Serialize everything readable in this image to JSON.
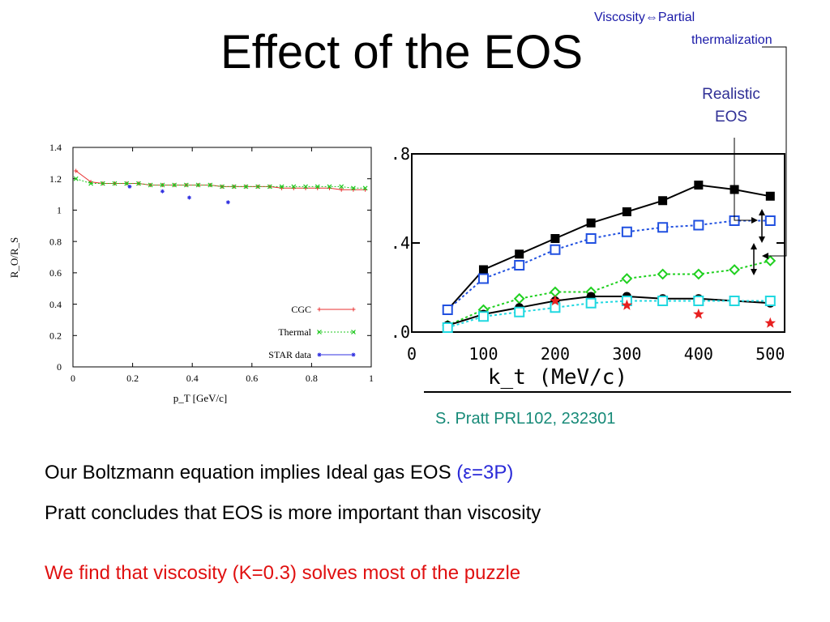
{
  "title": "Effect of the EOS",
  "annotations": {
    "viscosity_line1": "Viscosity⇔Partial",
    "viscosity_line2": "thermalization",
    "eos_line1": "Realistic",
    "eos_line2": "EOS"
  },
  "reference": "S. Pratt PRL102, 232301",
  "text_lines": {
    "line1_prefix": "Our Boltzmann equation implies Ideal gas EOS ",
    "line1_paren": "(ε=3P)",
    "line2": "Pratt concludes that EOS is more important than viscosity",
    "line3": "We find that viscosity (K=0.3) solves most of the puzzle"
  },
  "colors": {
    "title": "#000000",
    "annotation": "#1a1aa8",
    "reference": "#178a78",
    "highlight": "#e01010",
    "epsilon": "#2a2ad8"
  },
  "chart_data": [
    {
      "type": "line",
      "xlabel": "p_T [GeV/c]",
      "ylabel": "R_O/R_S",
      "xlim": [
        0,
        1
      ],
      "ylim": [
        0,
        1.4
      ],
      "xticks": [
        "0",
        "0.2",
        "0.4",
        "0.6",
        "0.8",
        "1"
      ],
      "yticks": [
        "0",
        "0.2",
        "0.4",
        "0.6",
        "0.8",
        "1",
        "1.2",
        "1.4"
      ],
      "legend_position": "bottom-right",
      "series": [
        {
          "name": "CGC",
          "color": "#e83030",
          "marker": "plus",
          "line": "solid",
          "x": [
            0.01,
            0.06,
            0.1,
            0.14,
            0.18,
            0.22,
            0.26,
            0.3,
            0.34,
            0.38,
            0.42,
            0.46,
            0.5,
            0.54,
            0.58,
            0.62,
            0.66,
            0.7,
            0.74,
            0.78,
            0.82,
            0.86,
            0.9,
            0.94,
            0.98
          ],
          "y": [
            1.25,
            1.18,
            1.17,
            1.17,
            1.17,
            1.17,
            1.16,
            1.16,
            1.16,
            1.16,
            1.16,
            1.16,
            1.15,
            1.15,
            1.15,
            1.15,
            1.15,
            1.14,
            1.14,
            1.14,
            1.14,
            1.14,
            1.13,
            1.13,
            1.13
          ]
        },
        {
          "name": "Thermal",
          "color": "#20c820",
          "marker": "x",
          "line": "dotted",
          "x": [
            0.01,
            0.06,
            0.1,
            0.14,
            0.18,
            0.22,
            0.26,
            0.3,
            0.34,
            0.38,
            0.42,
            0.46,
            0.5,
            0.54,
            0.58,
            0.62,
            0.66,
            0.7,
            0.74,
            0.78,
            0.82,
            0.86,
            0.9,
            0.94,
            0.98
          ],
          "y": [
            1.2,
            1.17,
            1.17,
            1.17,
            1.17,
            1.17,
            1.16,
            1.16,
            1.16,
            1.16,
            1.16,
            1.16,
            1.15,
            1.15,
            1.15,
            1.15,
            1.15,
            1.15,
            1.15,
            1.15,
            1.15,
            1.15,
            1.15,
            1.14,
            1.14
          ]
        },
        {
          "name": "STAR data",
          "color": "#3030e0",
          "marker": "asterisk",
          "line": "none",
          "x": [
            0.19,
            0.3,
            0.39,
            0.52
          ],
          "y": [
            1.15,
            1.12,
            1.08,
            1.05
          ]
        }
      ]
    },
    {
      "type": "line",
      "xlabel": "k_t (MeV/c)",
      "ylabel": "",
      "xlim": [
        0,
        520
      ],
      "ylim": [
        0.0,
        0.8
      ],
      "xticks": [
        "0",
        "100",
        "200",
        "300",
        "400",
        "500"
      ],
      "yticks": [
        ".0",
        ".4",
        ".8"
      ],
      "series": [
        {
          "color": "#000000",
          "marker": "filled-square",
          "line": "solid",
          "x": [
            50,
            100,
            150,
            200,
            250,
            300,
            350,
            400,
            450,
            500
          ],
          "y": [
            0.1,
            0.28,
            0.35,
            0.42,
            0.49,
            0.54,
            0.59,
            0.66,
            0.64,
            0.61
          ]
        },
        {
          "color": "#2050e0",
          "marker": "open-square",
          "line": "dotted",
          "x": [
            50,
            100,
            150,
            200,
            250,
            300,
            350,
            400,
            450,
            500
          ],
          "y": [
            0.1,
            0.24,
            0.3,
            0.37,
            0.42,
            0.45,
            0.47,
            0.48,
            0.5,
            0.5
          ]
        },
        {
          "color": "#20d020",
          "marker": "open-diamond",
          "line": "dotted",
          "x": [
            50,
            100,
            150,
            200,
            250,
            300,
            350,
            400,
            450,
            500
          ],
          "y": [
            0.03,
            0.1,
            0.15,
            0.18,
            0.18,
            0.24,
            0.26,
            0.26,
            0.28,
            0.32
          ]
        },
        {
          "color": "#000000",
          "marker": "filled-circle",
          "line": "solid",
          "x": [
            50,
            100,
            150,
            200,
            250,
            300,
            350,
            400,
            450,
            500
          ],
          "y": [
            0.03,
            0.08,
            0.11,
            0.14,
            0.16,
            0.16,
            0.15,
            0.15,
            0.14,
            0.13
          ]
        },
        {
          "color": "#20d8e0",
          "marker": "open-square",
          "line": "dotted",
          "x": [
            50,
            100,
            150,
            200,
            250,
            300,
            350,
            400,
            450,
            500
          ],
          "y": [
            0.02,
            0.07,
            0.09,
            0.11,
            0.13,
            0.14,
            0.14,
            0.14,
            0.14,
            0.14
          ]
        },
        {
          "color": "#e82020",
          "marker": "star",
          "line": "none",
          "x": [
            200,
            300,
            400,
            500
          ],
          "y": [
            0.14,
            0.12,
            0.08,
            0.04
          ]
        }
      ]
    }
  ]
}
